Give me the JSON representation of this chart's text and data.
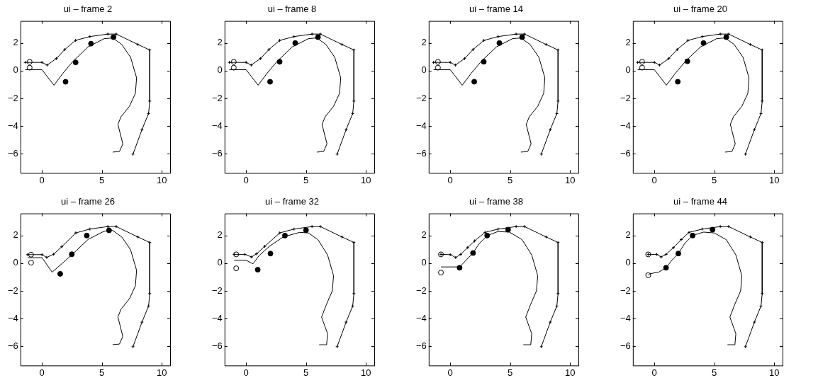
{
  "chart_data": [
    {
      "type": "line",
      "title": "ui – frame 2",
      "xlim": [
        -1.8,
        10.7
      ],
      "ylim": [
        -7.4,
        3.6
      ],
      "xticks": [
        0,
        5,
        10
      ],
      "yticks": [
        -6,
        -4,
        -2,
        0,
        2
      ],
      "series": [
        {
          "type": "line",
          "color": "#000000",
          "marker": "cross",
          "x": [
            -1.4,
            0,
            0.43,
            1.2,
            1.9,
            2.8,
            4.0,
            5.5,
            6.2,
            8.0,
            9.0,
            9.0,
            8.9,
            8.35,
            7.6
          ],
          "values": [
            0.6,
            0.6,
            0.41,
            0.88,
            1.53,
            2.19,
            2.47,
            2.65,
            2.65,
            1.9,
            1.5,
            -2.2,
            -3.1,
            -4.26,
            -6.04
          ]
        },
        {
          "type": "line",
          "color": "#000000",
          "marker": "none",
          "x": [
            -1.4,
            0,
            1.0,
            1.7,
            2.6,
            3.85,
            5.2,
            5.9,
            6.66,
            7.4,
            7.9,
            7.8,
            7.3,
            6.6,
            6.34,
            6.75,
            6.47,
            5.9
          ],
          "values": [
            0.07,
            0.07,
            -1.05,
            -0.24,
            0.69,
            1.72,
            2.32,
            2.37,
            1.9,
            0.97,
            -0.52,
            -1.64,
            -2.58,
            -3.33,
            -3.89,
            -5.29,
            -5.85,
            -5.89
          ]
        },
        {
          "type": "scatter",
          "color": "#000000",
          "marker": "circle",
          "x": [
            1.97,
            2.81,
            4.09,
            5.97
          ],
          "values": [
            -0.8,
            0.6,
            1.96,
            2.43
          ]
        },
        {
          "type": "scatter",
          "color": "#ffffff",
          "marker": "circle",
          "x": [
            -1.03,
            -1.03
          ],
          "values": [
            0.64,
            0.22
          ]
        }
      ]
    },
    {
      "type": "line",
      "title": "ui – frame 8",
      "xlim": [
        -1.8,
        10.7
      ],
      "ylim": [
        -7.4,
        3.6
      ],
      "xticks": [
        0,
        5,
        10
      ],
      "yticks": [
        -6,
        -4,
        -2,
        0,
        2
      ],
      "series": [
        {
          "type": "line",
          "color": "#000000",
          "marker": "cross",
          "x": [
            -1.4,
            0,
            0.43,
            1.2,
            1.9,
            2.8,
            4.0,
            5.5,
            6.2,
            8.0,
            9.0,
            9.0,
            8.9,
            8.35,
            7.6
          ],
          "values": [
            0.6,
            0.6,
            0.41,
            0.88,
            1.53,
            2.19,
            2.47,
            2.65,
            2.65,
            1.9,
            1.5,
            -2.2,
            -3.1,
            -4.26,
            -6.04
          ]
        },
        {
          "type": "line",
          "color": "#000000",
          "marker": "none",
          "x": [
            -1.4,
            0,
            1.0,
            1.7,
            2.6,
            3.85,
            5.2,
            5.9,
            6.66,
            7.4,
            7.9,
            7.8,
            7.3,
            6.6,
            6.34,
            6.75,
            6.47,
            5.9
          ],
          "values": [
            0.07,
            0.07,
            -1.05,
            -0.24,
            0.69,
            1.72,
            2.32,
            2.37,
            1.9,
            0.97,
            -0.52,
            -1.64,
            -2.58,
            -3.33,
            -3.89,
            -5.29,
            -5.85,
            -5.89
          ]
        },
        {
          "type": "scatter",
          "color": "#000000",
          "marker": "circle",
          "x": [
            2.0,
            2.8,
            4.1,
            6.0
          ],
          "values": [
            -0.8,
            0.65,
            2.0,
            2.43
          ]
        },
        {
          "type": "scatter",
          "color": "#ffffff",
          "marker": "circle",
          "x": [
            -1.03,
            -1.03
          ],
          "values": [
            0.64,
            0.22
          ]
        }
      ]
    },
    {
      "type": "line",
      "title": "ui – frame 14",
      "xlim": [
        -1.8,
        10.7
      ],
      "ylim": [
        -7.4,
        3.6
      ],
      "xticks": [
        0,
        5,
        10
      ],
      "yticks": [
        -6,
        -4,
        -2,
        0,
        2
      ],
      "series": [
        {
          "type": "line",
          "color": "#000000",
          "marker": "cross",
          "x": [
            -1.4,
            0,
            0.43,
            1.2,
            1.9,
            2.8,
            4.0,
            5.5,
            6.2,
            8.0,
            9.0,
            9.0,
            8.9,
            8.35,
            7.6
          ],
          "values": [
            0.6,
            0.6,
            0.41,
            0.88,
            1.53,
            2.19,
            2.47,
            2.65,
            2.65,
            1.9,
            1.5,
            -2.2,
            -3.1,
            -4.26,
            -6.04
          ]
        },
        {
          "type": "line",
          "color": "#000000",
          "marker": "none",
          "x": [
            -1.4,
            0,
            1.0,
            1.7,
            2.6,
            3.85,
            5.2,
            5.9,
            6.66,
            7.4,
            7.9,
            7.8,
            7.3,
            6.6,
            6.34,
            6.75,
            6.47,
            5.9
          ],
          "values": [
            0.07,
            0.07,
            -1.05,
            -0.24,
            0.69,
            1.72,
            2.32,
            2.37,
            1.9,
            0.97,
            -0.52,
            -1.64,
            -2.58,
            -3.33,
            -3.89,
            -5.29,
            -5.85,
            -5.89
          ]
        },
        {
          "type": "scatter",
          "color": "#000000",
          "marker": "circle",
          "x": [
            2.0,
            2.8,
            4.1,
            6.0
          ],
          "values": [
            -0.8,
            0.65,
            2.0,
            2.43
          ]
        },
        {
          "type": "scatter",
          "color": "#ffffff",
          "marker": "circle",
          "x": [
            -1.03,
            -1.03
          ],
          "values": [
            0.64,
            0.22
          ]
        }
      ]
    },
    {
      "type": "line",
      "title": "ui – frame 20",
      "xlim": [
        -1.8,
        10.7
      ],
      "ylim": [
        -7.4,
        3.6
      ],
      "xticks": [
        0,
        5,
        10
      ],
      "yticks": [
        -6,
        -4,
        -2,
        0,
        2
      ],
      "series": [
        {
          "type": "line",
          "color": "#000000",
          "marker": "cross",
          "x": [
            -1.4,
            0,
            0.43,
            1.2,
            1.9,
            2.8,
            4.0,
            5.5,
            6.2,
            8.0,
            9.0,
            9.0,
            8.9,
            8.35,
            7.6
          ],
          "values": [
            0.6,
            0.6,
            0.41,
            0.88,
            1.53,
            2.19,
            2.47,
            2.65,
            2.65,
            1.9,
            1.5,
            -2.2,
            -3.1,
            -4.26,
            -6.04
          ]
        },
        {
          "type": "line",
          "color": "#000000",
          "marker": "none",
          "x": [
            -1.4,
            0,
            1.0,
            1.7,
            2.6,
            3.85,
            5.2,
            5.9,
            6.66,
            7.4,
            7.9,
            7.8,
            7.3,
            6.6,
            6.34,
            6.75,
            6.47,
            5.9
          ],
          "values": [
            0.07,
            0.07,
            -1.05,
            -0.24,
            0.69,
            1.72,
            2.32,
            2.37,
            1.9,
            0.97,
            -0.52,
            -1.64,
            -2.58,
            -3.33,
            -3.89,
            -5.29,
            -5.85,
            -5.89
          ]
        },
        {
          "type": "scatter",
          "color": "#000000",
          "marker": "circle",
          "x": [
            1.95,
            2.75,
            4.1,
            6.0
          ],
          "values": [
            -0.8,
            0.68,
            2.0,
            2.43
          ]
        },
        {
          "type": "scatter",
          "color": "#ffffff",
          "marker": "circle",
          "x": [
            -1.03,
            -1.03
          ],
          "values": [
            0.64,
            0.22
          ]
        }
      ]
    },
    {
      "type": "line",
      "title": "ui – frame 26",
      "xlim": [
        -1.8,
        10.7
      ],
      "ylim": [
        -7.4,
        3.6
      ],
      "xticks": [
        0,
        5,
        10
      ],
      "yticks": [
        -6,
        -4,
        -2,
        0,
        2
      ],
      "series": [
        {
          "type": "line",
          "color": "#000000",
          "marker": "cross",
          "x": [
            -1.2,
            0,
            0.39,
            0.97,
            1.65,
            2.82,
            4.0,
            5.5,
            6.2,
            8.0,
            9.0,
            9.0,
            8.9,
            8.35,
            7.6
          ],
          "values": [
            0.62,
            0.62,
            0.42,
            0.65,
            1.19,
            2.19,
            2.47,
            2.65,
            2.65,
            1.9,
            1.5,
            -2.2,
            -3.1,
            -4.26,
            -6.04
          ]
        },
        {
          "type": "line",
          "color": "#000000",
          "marker": "none",
          "x": [
            -1.2,
            0,
            0.85,
            1.7,
            2.6,
            3.85,
            5.2,
            5.9,
            6.66,
            7.4,
            7.9,
            7.8,
            7.3,
            6.6,
            6.34,
            6.75,
            6.47,
            5.9
          ],
          "values": [
            0.4,
            0.4,
            -0.65,
            0.0,
            0.69,
            1.72,
            2.32,
            2.37,
            1.9,
            0.97,
            -0.52,
            -1.64,
            -2.58,
            -3.33,
            -3.89,
            -5.29,
            -5.85,
            -5.89
          ]
        },
        {
          "type": "scatter",
          "color": "#000000",
          "marker": "circle",
          "x": [
            1.52,
            2.49,
            3.74,
            5.6
          ],
          "values": [
            -0.77,
            0.65,
            2.0,
            2.38
          ]
        },
        {
          "type": "scatter",
          "color": "#ffffff",
          "marker": "circle",
          "x": [
            -0.91,
            -0.91
          ],
          "values": [
            0.62,
            0.04
          ]
        }
      ]
    },
    {
      "type": "line",
      "title": "ui – frame 32",
      "xlim": [
        -1.8,
        10.7
      ],
      "ylim": [
        -7.4,
        3.6
      ],
      "xticks": [
        0,
        5,
        10
      ],
      "yticks": [
        -6,
        -4,
        -2,
        0,
        2
      ],
      "series": [
        {
          "type": "line",
          "color": "#000000",
          "marker": "cross",
          "x": [
            -1.0,
            -0.1,
            0.45,
            0.87,
            1.55,
            2.81,
            4.0,
            5.5,
            6.2,
            8.0,
            9.0,
            9.0,
            8.9,
            8.35,
            7.6
          ],
          "values": [
            0.64,
            0.64,
            0.45,
            0.68,
            1.22,
            2.19,
            2.47,
            2.65,
            2.65,
            1.9,
            1.5,
            -2.2,
            -3.1,
            -4.26,
            -6.04
          ]
        },
        {
          "type": "line",
          "color": "#000000",
          "marker": "none",
          "x": [
            -1.0,
            0,
            0.58,
            1.07,
            1.94,
            3.1,
            4.46,
            5.2,
            6.0,
            6.8,
            7.3,
            7.2,
            6.7,
            6.3,
            6.8,
            6.72,
            6.1
          ],
          "values": [
            0.21,
            0.21,
            -0.04,
            0.54,
            1.22,
            1.9,
            2.23,
            2.19,
            1.7,
            0.6,
            -0.9,
            -2.0,
            -3.0,
            -3.9,
            -5.1,
            -5.9,
            -5.9
          ]
        },
        {
          "type": "scatter",
          "color": "#000000",
          "marker": "circle",
          "x": [
            0.97,
            2.03,
            3.24,
            5.0
          ],
          "values": [
            -0.47,
            0.7,
            2.0,
            2.39
          ]
        },
        {
          "type": "scatter",
          "color": "#ffffff",
          "marker": "circle",
          "x": [
            -0.83,
            -0.83
          ],
          "values": [
            0.64,
            -0.37
          ]
        }
      ]
    },
    {
      "type": "line",
      "title": "ui – frame 38",
      "xlim": [
        -1.8,
        10.7
      ],
      "ylim": [
        -7.4,
        3.6
      ],
      "xticks": [
        0,
        5,
        10
      ],
      "yticks": [
        -6,
        -4,
        -2,
        0,
        2
      ],
      "series": [
        {
          "type": "line",
          "color": "#000000",
          "marker": "cross",
          "x": [
            -0.78,
            0,
            0.45,
            0.87,
            1.45,
            2.03,
            2.9,
            4.0,
            5.5,
            6.2,
            8.0,
            9.0,
            9.0,
            8.9,
            8.35,
            7.6
          ],
          "values": [
            0.64,
            0.62,
            0.41,
            0.64,
            1.13,
            1.61,
            2.23,
            2.47,
            2.65,
            2.65,
            1.9,
            1.5,
            -2.2,
            -3.1,
            -4.26,
            -6.04
          ]
        },
        {
          "type": "line",
          "color": "#000000",
          "marker": "none",
          "x": [
            -0.78,
            0.78,
            1.36,
            1.9,
            2.42,
            3.1,
            3.97,
            4.94,
            6.0,
            6.8,
            7.3,
            7.2,
            6.7,
            6.3,
            6.8,
            6.72,
            6.1
          ],
          "values": [
            -0.27,
            -0.27,
            0.25,
            0.74,
            1.42,
            2.0,
            2.29,
            2.25,
            1.7,
            0.6,
            -0.9,
            -2.0,
            -3.0,
            -3.9,
            -5.1,
            -5.9,
            -5.9
          ]
        },
        {
          "type": "scatter",
          "color": "#000000",
          "marker": "circle",
          "x": [
            0.78,
            1.9,
            3.08,
            4.83
          ],
          "values": [
            -0.33,
            0.74,
            2.0,
            2.43
          ]
        },
        {
          "type": "scatter",
          "color": "#ffffff",
          "marker": "circle",
          "x": [
            -0.78,
            -0.78
          ],
          "values": [
            0.64,
            -0.68
          ]
        }
      ]
    },
    {
      "type": "line",
      "title": "ui – frame 44",
      "xlim": [
        -1.8,
        10.7
      ],
      "ylim": [
        -7.4,
        3.6
      ],
      "xticks": [
        0,
        5,
        10
      ],
      "yticks": [
        -6,
        -4,
        -2,
        0,
        2
      ],
      "series": [
        {
          "type": "line",
          "color": "#000000",
          "marker": "cross",
          "x": [
            -0.52,
            0.19,
            0.56,
            0.97,
            1.59,
            2.24,
            2.89,
            4.0,
            5.5,
            6.2,
            8.0,
            9.0,
            9.0,
            8.9,
            8.35,
            7.6
          ],
          "values": [
            0.64,
            0.64,
            0.45,
            0.64,
            1.13,
            1.71,
            2.23,
            2.47,
            2.65,
            2.65,
            1.9,
            1.5,
            -2.2,
            -3.1,
            -4.26,
            -6.04
          ]
        },
        {
          "type": "line",
          "color": "#000000",
          "marker": "none",
          "x": [
            -0.52,
            -0.37,
            0.37,
            0.97,
            1.49,
            2.0,
            2.52,
            3.17,
            4.1,
            5.0,
            6.0,
            6.8,
            7.3,
            7.2,
            6.7,
            6.3,
            6.8,
            6.72,
            6.1
          ],
          "values": [
            -0.87,
            -0.76,
            -0.64,
            -0.33,
            0.25,
            0.7,
            1.42,
            2.0,
            2.25,
            2.19,
            1.7,
            0.6,
            -0.9,
            -2.0,
            -3.0,
            -3.9,
            -5.1,
            -5.9,
            -5.9
          ]
        },
        {
          "type": "scatter",
          "color": "#000000",
          "marker": "circle",
          "x": [
            0.97,
            2.0,
            3.19,
            4.85
          ],
          "values": [
            -0.33,
            0.7,
            2.0,
            2.43
          ]
        },
        {
          "type": "scatter",
          "color": "#ffffff",
          "marker": "circle",
          "x": [
            -0.52,
            -0.52
          ],
          "values": [
            0.64,
            -0.87
          ]
        }
      ]
    }
  ]
}
